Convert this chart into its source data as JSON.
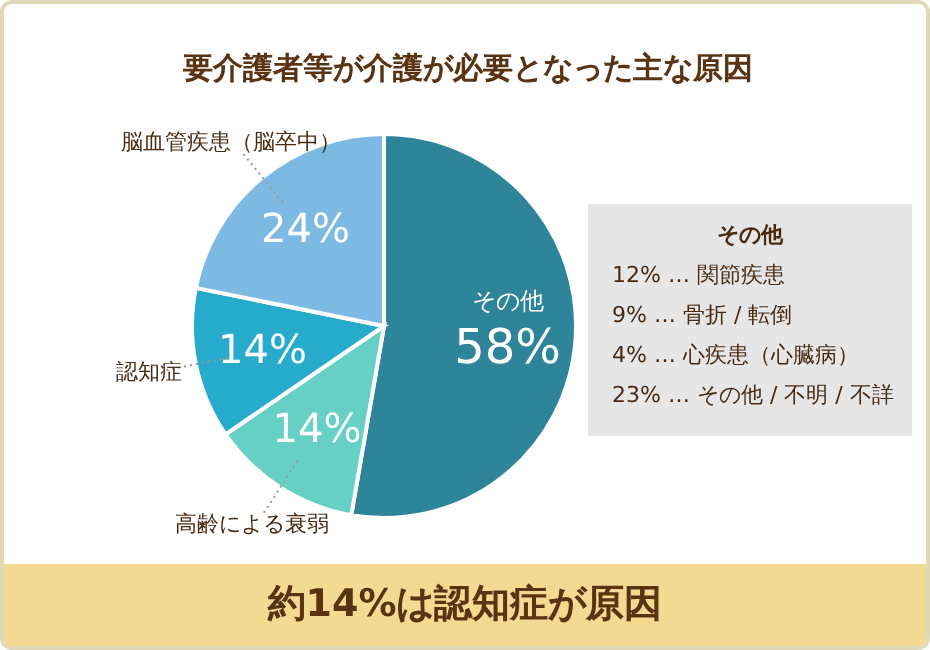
{
  "chart_data": {
    "type": "pie",
    "title": "要介護者等が介護が必要となった主な原因",
    "categories": [
      "その他",
      "高齢による衰弱",
      "認知症",
      "脳血管疾患（脳卒中）"
    ],
    "values": [
      58,
      14,
      14,
      24
    ],
    "value_labels": [
      "58%",
      "14%",
      "14%",
      "24%"
    ],
    "colors": [
      "#2e8499",
      "#66d0c4",
      "#27abcc",
      "#7dbae3"
    ],
    "annotations": [
      "その他",
      "12% … 関節疾患",
      "9% … 骨折 / 転倒",
      "4% … 心疾患（心臓病）",
      "23% … その他 / 不明 / 不詳",
      "約14%は認知症が原因"
    ]
  }
}
